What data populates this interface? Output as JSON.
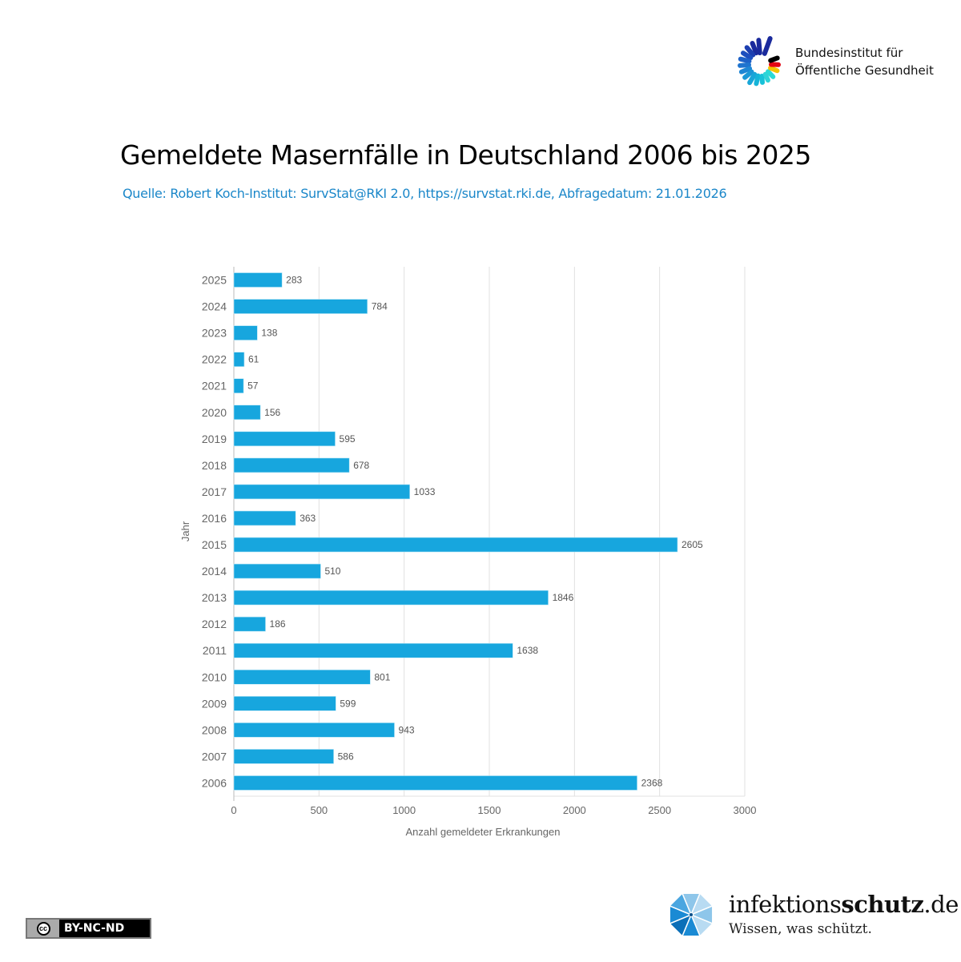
{
  "header": {
    "org_line1": "Bundesinstitut für",
    "org_line2": "Öffentliche Gesundheit"
  },
  "title": "Gemeldete Masernfälle in Deutschland 2006 bis 2025",
  "subtitle": "Quelle: Robert Koch-Institut: SurvStat@RKI 2.0, https://survstat.rki.de, Abfragedatum: 21.01.2026",
  "footer": {
    "license": "BY-NC-ND",
    "license_icon_text": "cc",
    "brand_regular": "infektions",
    "brand_bold": "schutz",
    "brand_suffix": ".de",
    "tagline": "Wissen, was schützt."
  },
  "colors": {
    "bar": "#17a6de",
    "subtitle": "#1b87c9",
    "grid": "#e0e0e0",
    "axis_text": "#666666"
  },
  "chart_data": {
    "type": "bar",
    "orientation": "horizontal",
    "title": "Gemeldete Masernfälle in Deutschland 2006 bis 2025",
    "xlabel": "Anzahl gemeldeter Erkrankungen",
    "ylabel": "Jahr",
    "xlim": [
      0,
      3000
    ],
    "xticks": [
      0,
      500,
      1000,
      1500,
      2000,
      2500,
      3000
    ],
    "grid": true,
    "legend": "none",
    "categories": [
      "2025",
      "2024",
      "2023",
      "2022",
      "2021",
      "2020",
      "2019",
      "2018",
      "2017",
      "2016",
      "2015",
      "2014",
      "2013",
      "2012",
      "2011",
      "2010",
      "2009",
      "2008",
      "2007",
      "2006"
    ],
    "values": [
      283,
      784,
      138,
      61,
      57,
      156,
      595,
      678,
      1033,
      363,
      2605,
      510,
      1846,
      186,
      1638,
      801,
      599,
      943,
      586,
      2368
    ],
    "data_labels": true
  }
}
